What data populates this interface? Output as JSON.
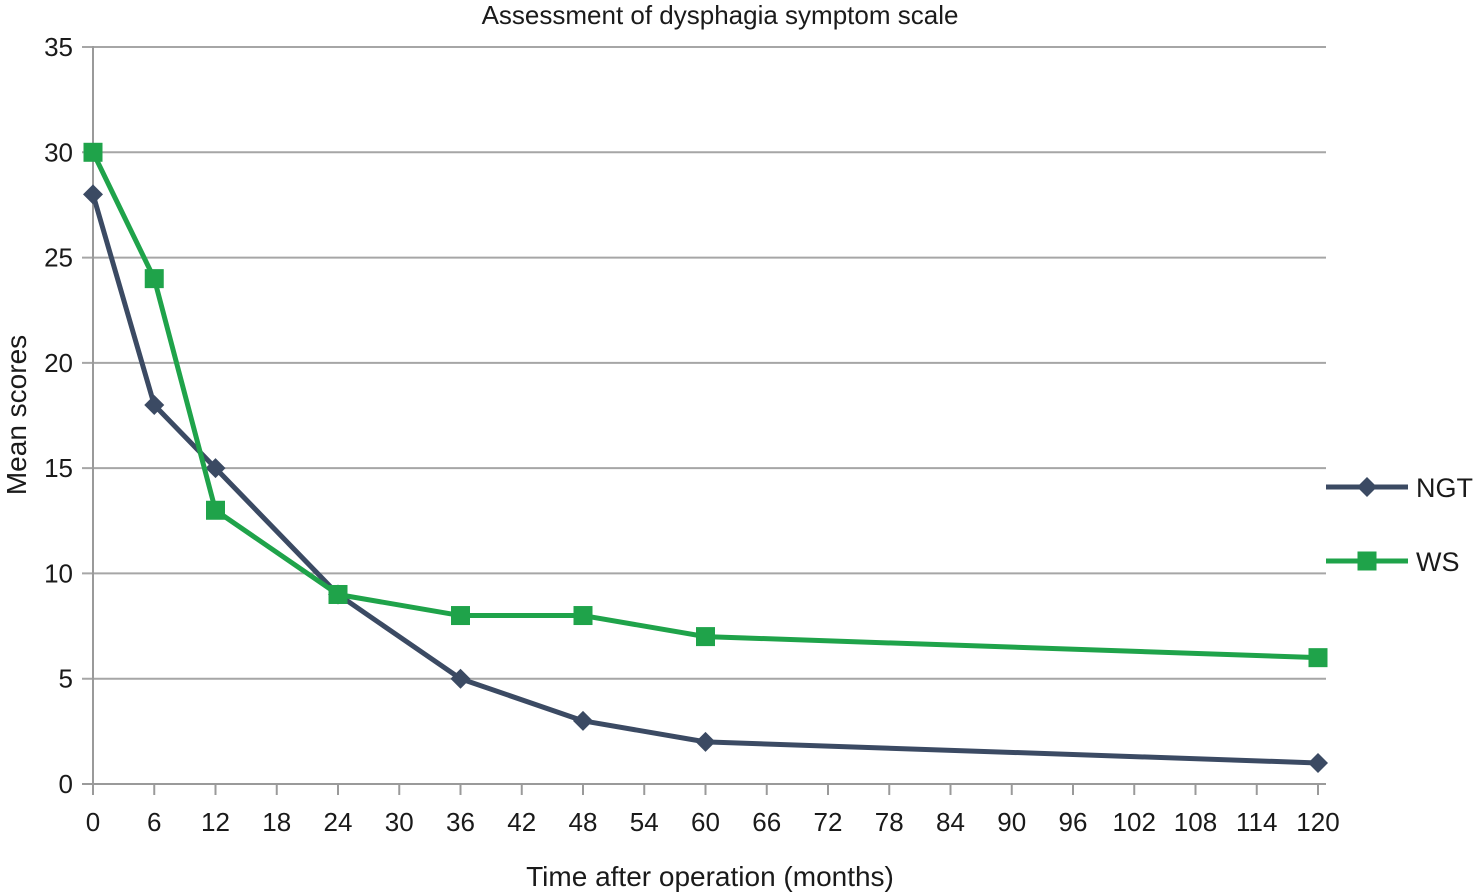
{
  "chart_data": {
    "type": "line",
    "title": "Assessment of dysphagia symptom scale",
    "xlabel": "Time after operation (months)",
    "ylabel": "Mean scores",
    "xlim": [
      0,
      120
    ],
    "ylim": [
      0,
      35
    ],
    "x_ticks": [
      "0",
      "6",
      "12",
      "18",
      "24",
      "30",
      "36",
      "42",
      "48",
      "54",
      "60",
      "66",
      "72",
      "78",
      "84",
      "90",
      "96",
      "102",
      "108",
      "114",
      "120"
    ],
    "y_ticks": [
      "0",
      "5",
      "10",
      "15",
      "20",
      "25",
      "30",
      "35"
    ],
    "grid": true,
    "legend_position": "right",
    "series": [
      {
        "name": "NGT",
        "color": "#3b4a63",
        "marker": "diamond",
        "x": [
          0,
          6,
          12,
          24,
          36,
          48,
          60,
          120
        ],
        "values": [
          28,
          18,
          15,
          9,
          5,
          3,
          2,
          1
        ]
      },
      {
        "name": "WS",
        "color": "#1fa34a",
        "marker": "square",
        "x": [
          0,
          6,
          12,
          24,
          36,
          48,
          60,
          120
        ],
        "values": [
          30,
          24,
          13,
          9,
          8,
          8,
          7,
          6
        ]
      }
    ]
  }
}
